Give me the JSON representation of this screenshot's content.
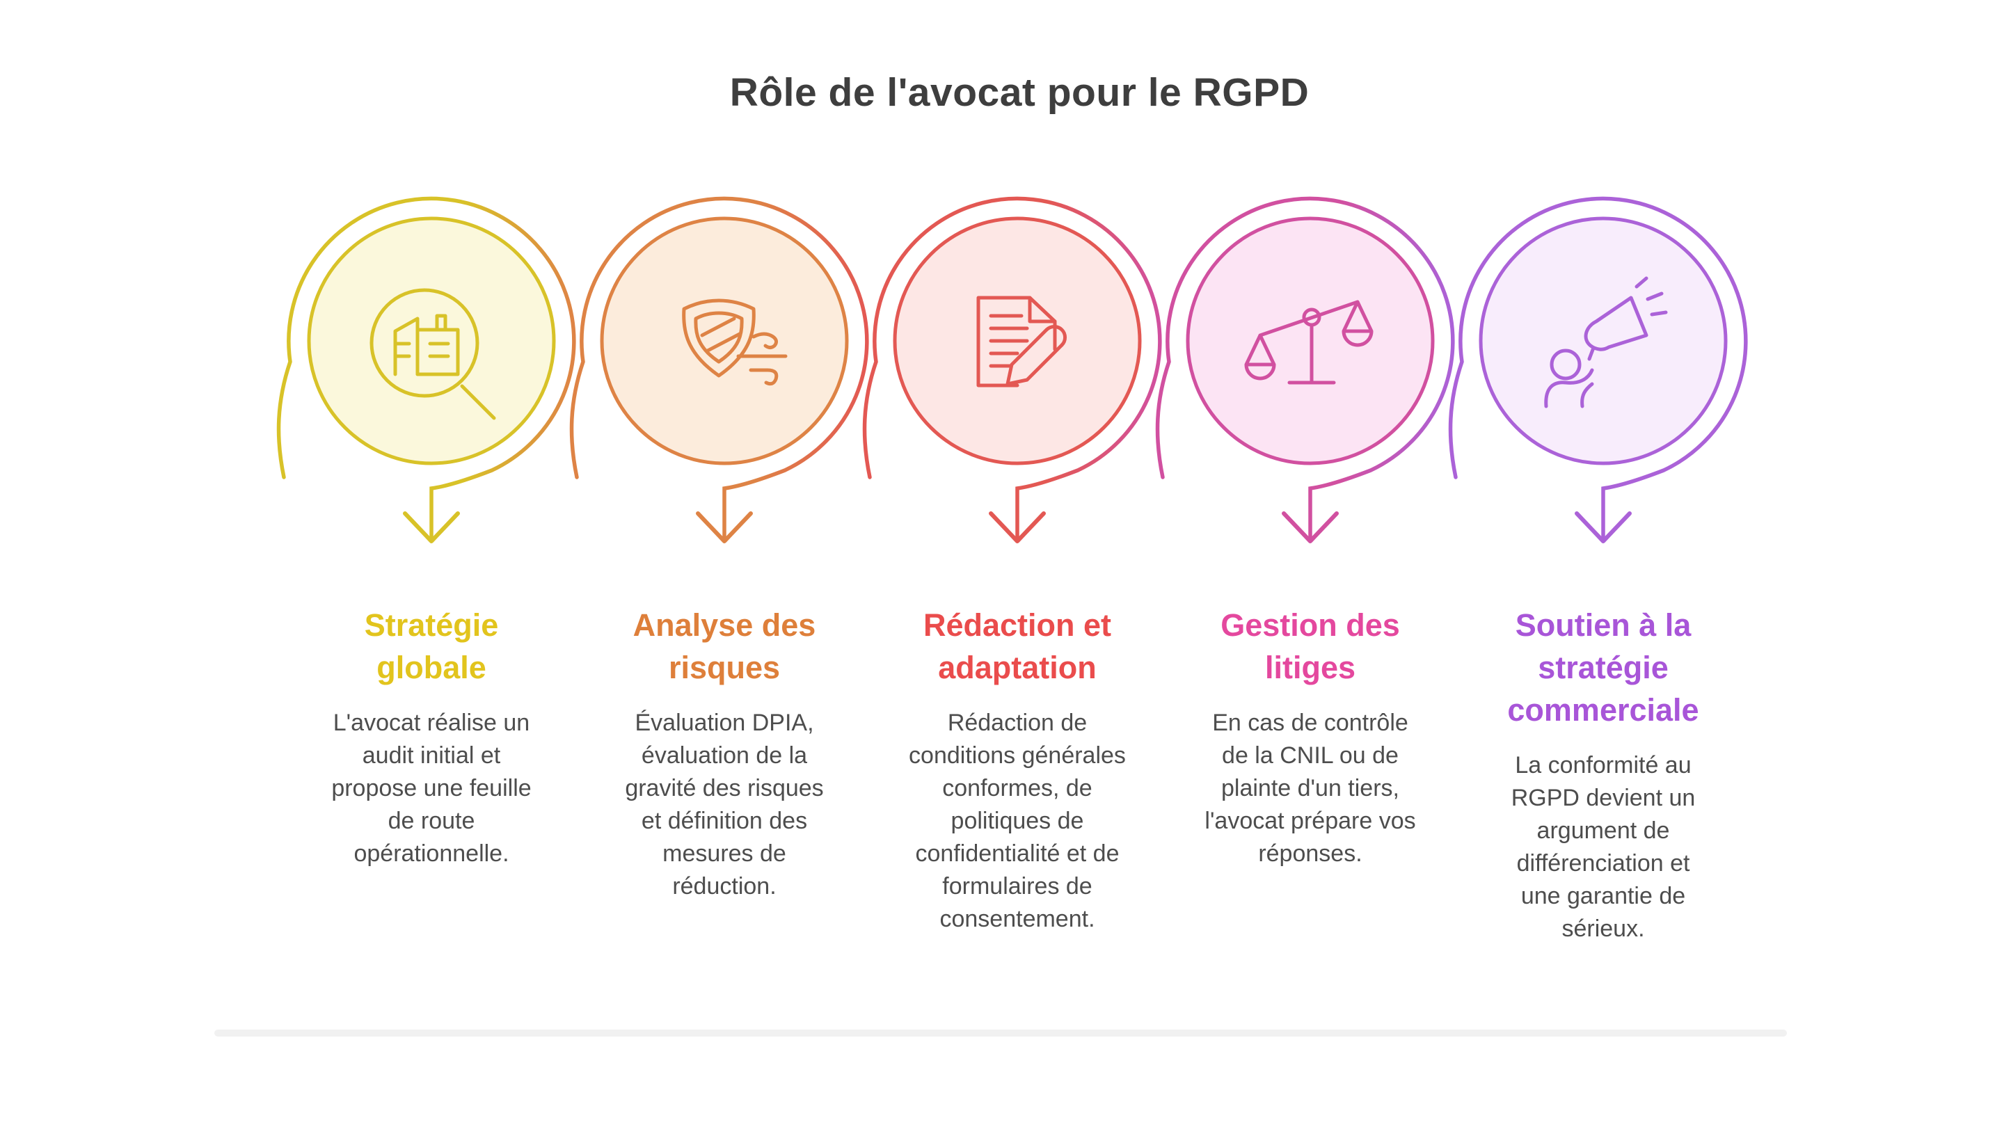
{
  "page": {
    "title": "Rôle de l'avocat pour le RGPD",
    "title_color": "#3e3e3e",
    "background": "#ffffff"
  },
  "divider": {
    "color": "#f1f1f1"
  },
  "steps": [
    {
      "key": "strategie-globale",
      "title": "Stratégie\nglobale",
      "description": "L'avocat réalise un\naudit initial et\npropose une feuille\nde route\nopérationnelle.",
      "icon": "audit-magnifier",
      "color": "#d8c228",
      "fill": "#fbf8dc",
      "title_color": "#e2c41d"
    },
    {
      "key": "analyse-des-risques",
      "title": "Analyse des\nrisques",
      "description": "Évaluation DPIA,\névaluation de la\ngravité des risques\net définition des\nmesures de\nréduction.",
      "icon": "shield-wind",
      "color": "#de8345",
      "fill": "#fcecdc",
      "title_color": "#de7f3a"
    },
    {
      "key": "redaction-et-adaptation",
      "title": "Rédaction et\nadaptation",
      "description": "Rédaction de\nconditions générales\nconformes, de\npolitiques de\nconfidentialité et de\nformulaires de\nconsentement.",
      "icon": "document-pencil",
      "color": "#e35853",
      "fill": "#fde7e5",
      "title_color": "#ea4c4c"
    },
    {
      "key": "gestion-des-litiges",
      "title": "Gestion des\nlitiges",
      "description": "En cas de contrôle\nde la CNIL ou de\nplainte d'un tiers,\nl'avocat prépare vos\nréponses.",
      "icon": "scales",
      "color": "#d150a0",
      "fill": "#fce4f4",
      "title_color": "#e4489e"
    },
    {
      "key": "soutien-strategie-commerciale",
      "title": "Soutien à la\nstratégie\ncommerciale",
      "description": "La conformité au\nRGPD devient un\nargument de\ndifférenciation et\nune garantie de\nsérieux.",
      "icon": "megaphone-person",
      "color": "#ab62d8",
      "fill": "#f8edfc",
      "title_color": "#a855d8"
    }
  ]
}
